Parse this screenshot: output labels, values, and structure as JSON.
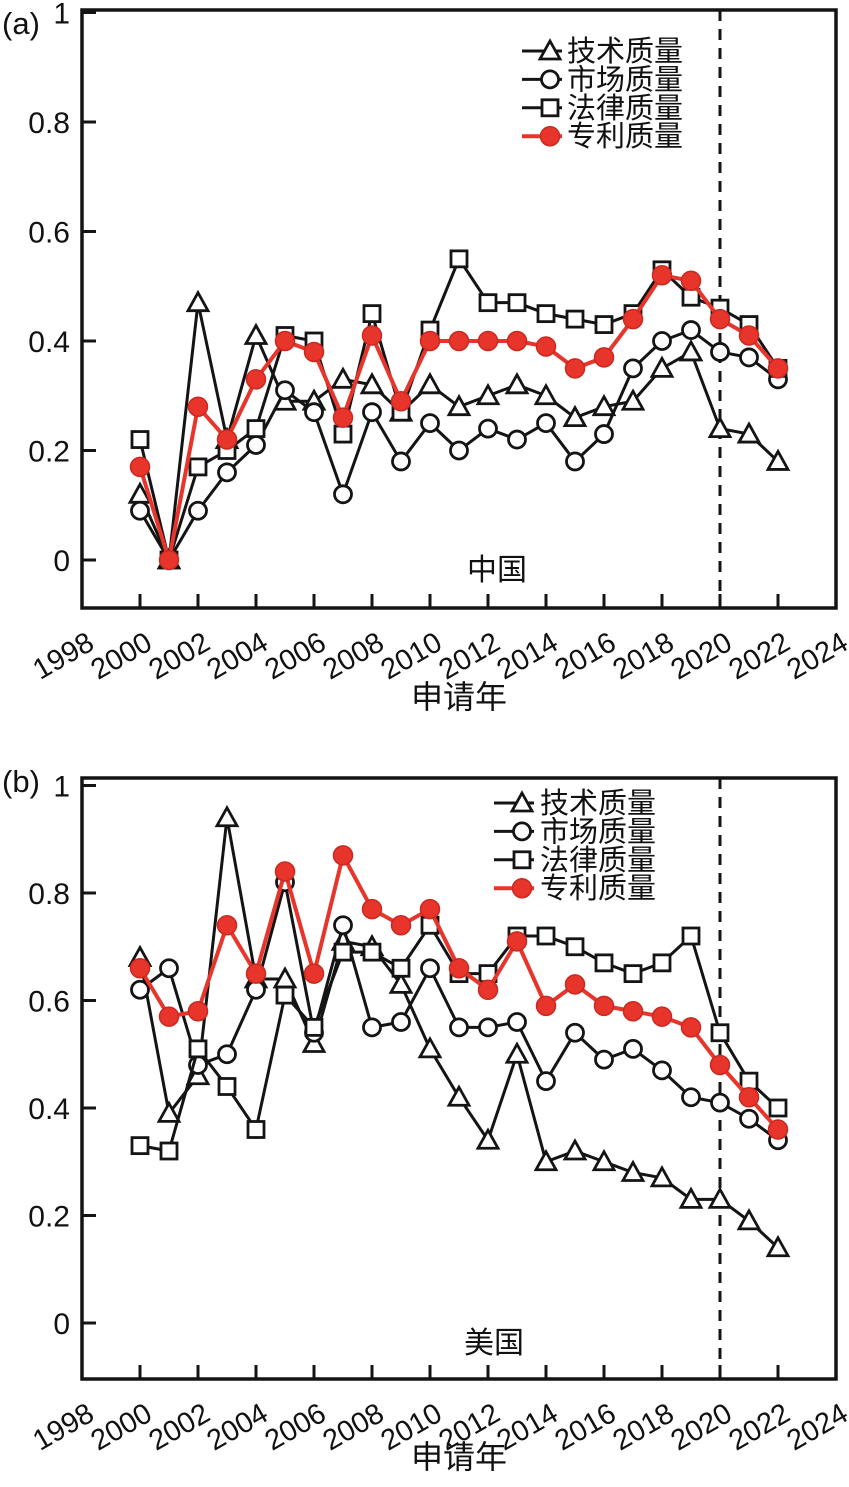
{
  "figure": {
    "accent_red": "#e8352c",
    "line_black": "#141414",
    "x_axis_label": "申请年",
    "legend_labels": [
      "技术质量",
      "市场质量",
      "法律质量",
      "专利质量"
    ]
  },
  "chart_data": [
    {
      "type": "line",
      "panel": "(a)",
      "title": "中国",
      "xlabel": "申请年",
      "ylabel": "",
      "xlim": [
        1998,
        2024
      ],
      "ylim": [
        0,
        1
      ],
      "grid": false,
      "legend_position": "top-right-inside",
      "dashed_vline_x": 2020,
      "x_tick_labels": [
        "1998",
        "2000",
        "2002",
        "2004",
        "2006",
        "2008",
        "2010",
        "2012",
        "2014",
        "2016",
        "2018",
        "2020",
        "2022",
        "2024"
      ],
      "y_tick_labels": [
        "0",
        "0.2",
        "0.4",
        "0.6",
        "0.8",
        "1"
      ],
      "x": [
        2000,
        2001,
        2002,
        2003,
        2004,
        2005,
        2006,
        2007,
        2008,
        2009,
        2010,
        2011,
        2012,
        2013,
        2014,
        2015,
        2016,
        2017,
        2018,
        2019,
        2020,
        2021,
        2022
      ],
      "series": [
        {
          "name": "技术质量",
          "marker": "triangle-open",
          "color": "black",
          "values": [
            0.12,
            0.0,
            0.47,
            0.22,
            0.41,
            0.29,
            0.29,
            0.33,
            0.32,
            0.27,
            0.32,
            0.28,
            0.3,
            0.32,
            0.3,
            0.26,
            0.28,
            0.29,
            0.35,
            0.38,
            0.24,
            0.23,
            0.18
          ]
        },
        {
          "name": "市场质量",
          "marker": "circle-open",
          "color": "black",
          "values": [
            0.09,
            0.0,
            0.09,
            0.16,
            0.21,
            0.31,
            0.27,
            0.12,
            0.27,
            0.18,
            0.25,
            0.2,
            0.24,
            0.22,
            0.25,
            0.18,
            0.23,
            0.35,
            0.4,
            0.42,
            0.38,
            0.37,
            0.33
          ]
        },
        {
          "name": "法律质量",
          "marker": "square-open",
          "color": "black",
          "values": [
            0.22,
            0.0,
            0.17,
            0.2,
            0.24,
            0.41,
            0.4,
            0.23,
            0.45,
            0.27,
            0.42,
            0.55,
            0.47,
            0.47,
            0.45,
            0.44,
            0.43,
            0.45,
            0.53,
            0.48,
            0.46,
            0.43,
            0.35
          ]
        },
        {
          "name": "专利质量",
          "marker": "circle-filled",
          "color": "red",
          "values": [
            0.17,
            0.0,
            0.28,
            0.22,
            0.33,
            0.4,
            0.38,
            0.26,
            0.41,
            0.29,
            0.4,
            0.4,
            0.4,
            0.4,
            0.39,
            0.35,
            0.37,
            0.44,
            0.52,
            0.51,
            0.44,
            0.41,
            0.35
          ]
        }
      ]
    },
    {
      "type": "line",
      "panel": "(b)",
      "title": "美国",
      "xlabel": "申请年",
      "ylabel": "",
      "xlim": [
        1998,
        2024
      ],
      "ylim": [
        0,
        1
      ],
      "grid": false,
      "legend_position": "top-right-inside",
      "dashed_vline_x": 2020,
      "x_tick_labels": [
        "1998",
        "2000",
        "2002",
        "2004",
        "2006",
        "2008",
        "2010",
        "2012",
        "2014",
        "2016",
        "2018",
        "2020",
        "2022",
        "2024"
      ],
      "y_tick_labels": [
        "0",
        "0.2",
        "0.4",
        "0.6",
        "0.8",
        "1"
      ],
      "x": [
        2000,
        2001,
        2002,
        2003,
        2004,
        2005,
        2006,
        2007,
        2008,
        2009,
        2010,
        2011,
        2012,
        2013,
        2014,
        2015,
        2016,
        2017,
        2018,
        2019,
        2020,
        2021,
        2022
      ],
      "series": [
        {
          "name": "技术质量",
          "marker": "triangle-open",
          "color": "black",
          "values": [
            0.68,
            0.39,
            0.46,
            0.94,
            0.64,
            0.64,
            0.52,
            0.71,
            0.7,
            0.63,
            0.51,
            0.42,
            0.34,
            0.5,
            0.3,
            0.32,
            0.3,
            0.28,
            0.27,
            0.23,
            0.23,
            0.19,
            0.14
          ]
        },
        {
          "name": "市场质量",
          "marker": "circle-open",
          "color": "black",
          "values": [
            0.62,
            0.66,
            0.48,
            0.5,
            0.62,
            0.82,
            0.54,
            0.74,
            0.55,
            0.56,
            0.66,
            0.55,
            0.55,
            0.56,
            0.45,
            0.54,
            0.49,
            0.51,
            0.47,
            0.42,
            0.41,
            0.38,
            0.34
          ]
        },
        {
          "name": "法律质量",
          "marker": "square-open",
          "color": "black",
          "values": [
            0.33,
            0.32,
            0.51,
            0.44,
            0.36,
            0.61,
            0.55,
            0.69,
            0.69,
            0.66,
            0.74,
            0.65,
            0.65,
            0.72,
            0.72,
            0.7,
            0.67,
            0.65,
            0.67,
            0.72,
            0.54,
            0.45,
            0.4
          ]
        },
        {
          "name": "专利质量",
          "marker": "circle-filled",
          "color": "red",
          "values": [
            0.66,
            0.57,
            0.58,
            0.74,
            0.65,
            0.84,
            0.65,
            0.87,
            0.77,
            0.74,
            0.77,
            0.66,
            0.62,
            0.71,
            0.59,
            0.63,
            0.59,
            0.58,
            0.57,
            0.55,
            0.48,
            0.42,
            0.36
          ]
        }
      ]
    }
  ]
}
